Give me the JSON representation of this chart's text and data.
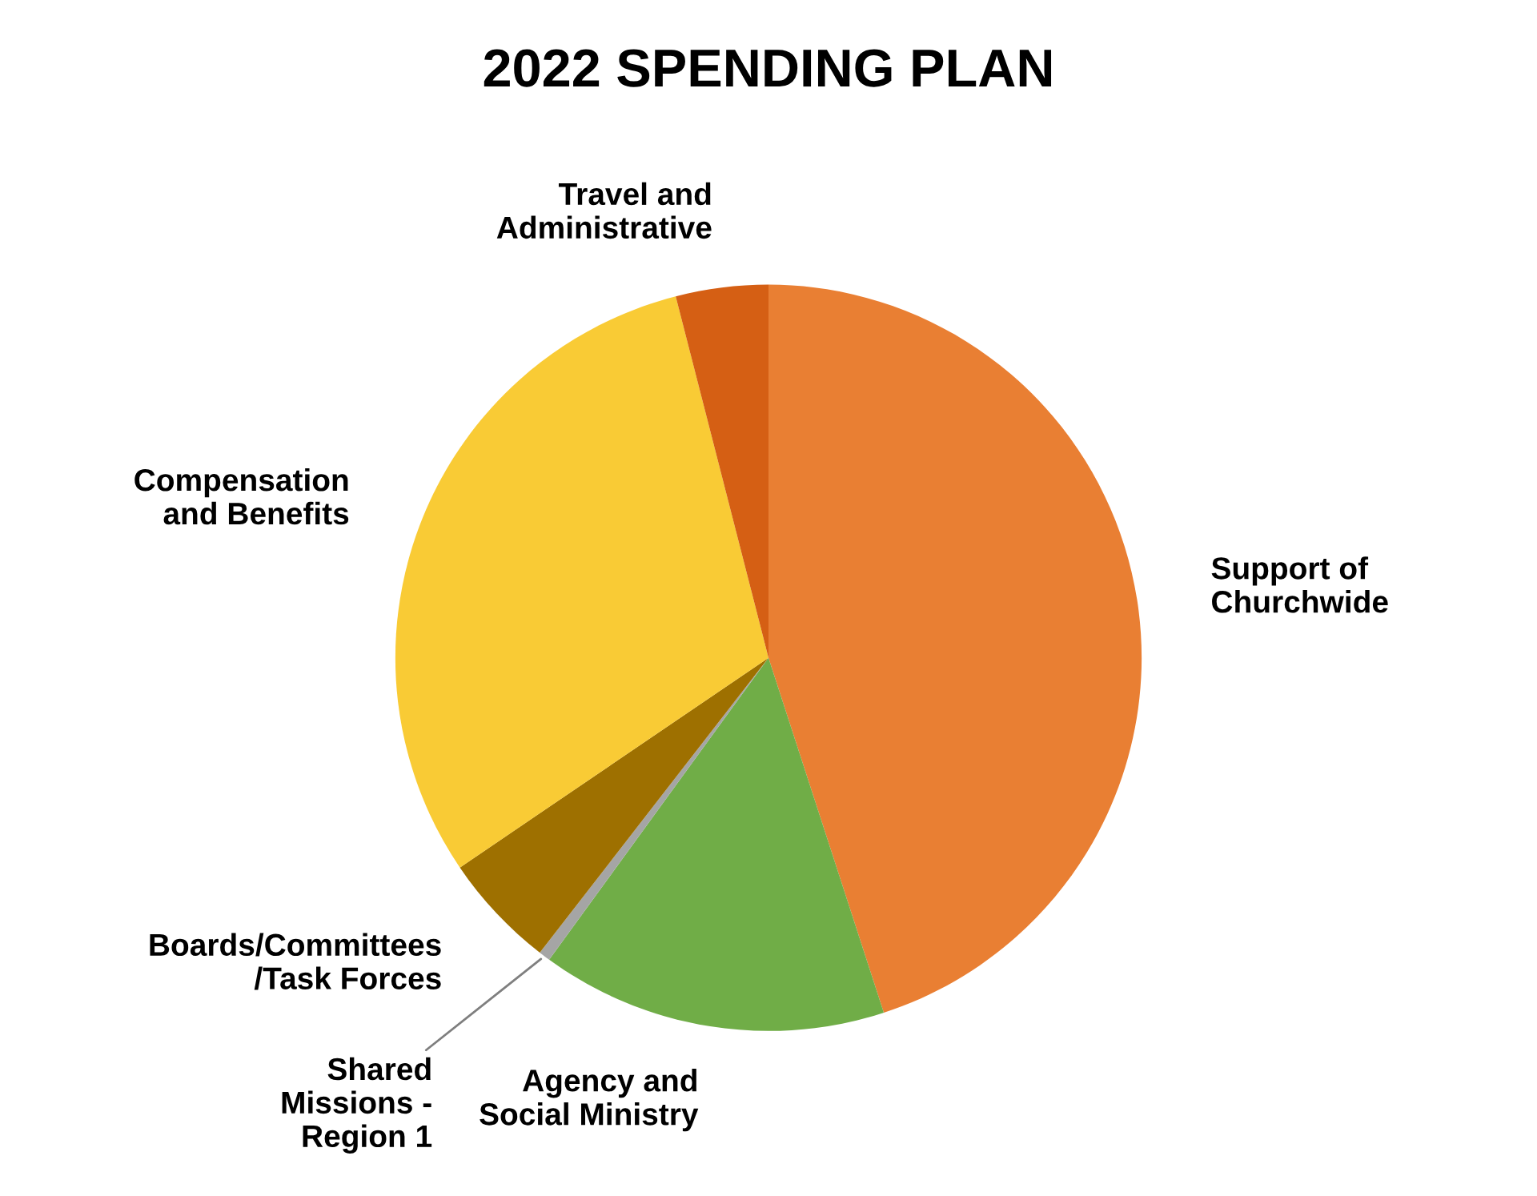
{
  "chart_data": {
    "type": "pie",
    "title": "2022 SPENDING PLAN",
    "categories": [
      "Support of\nChurchwide",
      "Agency and\nSocial Ministry",
      "Shared\nMissions -\nRegion 1",
      "Boards/Committees\n/Task Forces",
      "Compensation\nand Benefits",
      "Travel and\nAdministrative"
    ],
    "values": [
      45,
      15,
      0.5,
      5,
      30.5,
      4
    ],
    "colors": [
      "#e97f33",
      "#70ad47",
      "#a5a5a5",
      "#9e7000",
      "#f9cb35",
      "#d55f14"
    ],
    "legend": false
  }
}
